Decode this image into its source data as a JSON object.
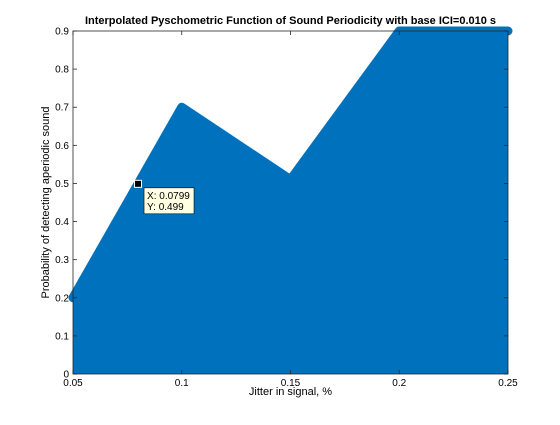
{
  "chart_data": {
    "type": "area",
    "title": "Interpolated Pyschometric Function of Sound Periodicity with base ICI=0.010 s",
    "xlabel": "Jitter in signal, %",
    "ylabel": "Probability of detecting aperiodic sound",
    "xlim": [
      0.05,
      0.25
    ],
    "ylim": [
      0,
      0.9
    ],
    "grid": false,
    "x_ticks": [
      "0.05",
      "0.1",
      "0.15",
      "0.2",
      "0.25"
    ],
    "y_ticks": [
      "0",
      "0.1",
      "0.2",
      "0.3",
      "0.4",
      "0.5",
      "0.6",
      "0.7",
      "0.8",
      "0.9"
    ],
    "x": [
      0.05,
      0.1,
      0.15,
      0.2,
      0.25
    ],
    "y": [
      0.2,
      0.7,
      0.51,
      0.9,
      0.9
    ],
    "fill_color": "#0072bd",
    "datatip": {
      "x": 0.0799,
      "y": 0.499,
      "x_text": "X: 0.0799",
      "y_text": "Y: 0.499"
    }
  }
}
